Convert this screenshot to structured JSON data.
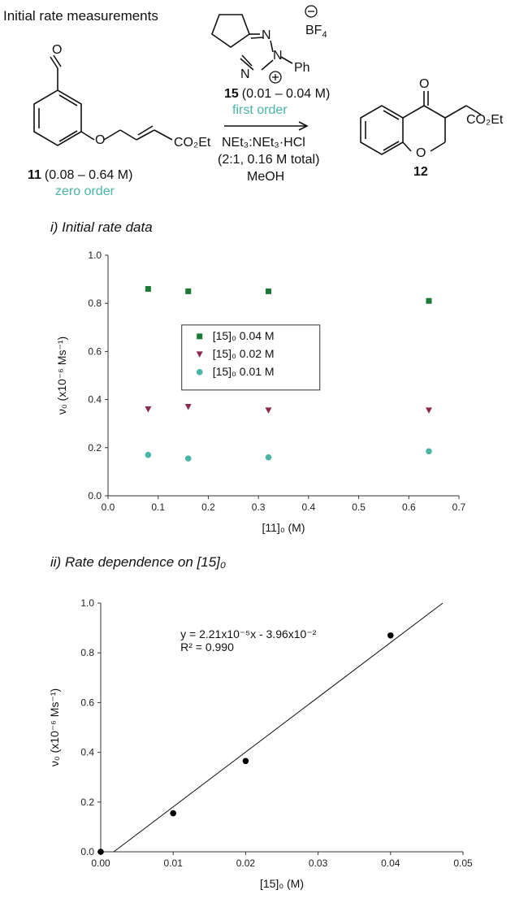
{
  "heading": "Initial rate measurements",
  "scheme": {
    "bf4": "BF",
    "bf4_sub": "4",
    "ph": "Ph",
    "n1": "N",
    "n2": "N",
    "n3": "N",
    "catalyst_label": "15",
    "catalyst_conc": "(0.01 – 0.04 M)",
    "catalyst_order": "first order",
    "conditions_line1": "NEt₃:NEt₃·HCl",
    "conditions_line2": "(2:1, 0.16 M total)",
    "conditions_line3": "MeOH",
    "sm_label": "11",
    "sm_conc": "(0.08 – 0.64 M)",
    "sm_order": "zero order",
    "sm_o": "O",
    "sm_ester": "CO₂Et",
    "sm_ring_o": "O",
    "product_label": "12",
    "product_o_ketone": "O",
    "product_o_ring": "O",
    "product_ester": "CO₂Et",
    "colors": {
      "order_text": "#48b5a6"
    }
  },
  "sections": {
    "one": "i) Initial rate data",
    "two": "ii) Rate dependence on [15]₀"
  },
  "chart_data": [
    {
      "type": "scatter",
      "title": "",
      "xlabel": "[11]₀ (M)",
      "ylabel": "ν₀ (x10⁻⁶ Ms⁻¹)",
      "xlim": [
        0.0,
        0.7
      ],
      "ylim": [
        0.0,
        1.0
      ],
      "xticks": [
        "0.0",
        "0.1",
        "0.2",
        "0.3",
        "0.4",
        "0.5",
        "0.6",
        "0.7"
      ],
      "yticks": [
        "0.0",
        "0.2",
        "0.4",
        "0.6",
        "0.8",
        "1.0"
      ],
      "legend_position": "left",
      "series": [
        {
          "name": "[15]₀ 0.04 M",
          "marker": "square",
          "color": "#1a7a34",
          "x": [
            0.08,
            0.16,
            0.32,
            0.64
          ],
          "y": [
            0.86,
            0.85,
            0.85,
            0.81
          ]
        },
        {
          "name": "[15]₀ 0.02 M",
          "marker": "triangle-down",
          "color": "#8b2b52",
          "x": [
            0.08,
            0.16,
            0.32,
            0.64
          ],
          "y": [
            0.36,
            0.37,
            0.355,
            0.355
          ]
        },
        {
          "name": "[15]₀ 0.01 M",
          "marker": "circle",
          "color": "#48b5a6",
          "x": [
            0.08,
            0.16,
            0.32,
            0.64
          ],
          "y": [
            0.17,
            0.155,
            0.16,
            0.185
          ]
        }
      ]
    },
    {
      "type": "scatter",
      "title": "",
      "xlabel": "[15]₀ (M)",
      "ylabel": "ν₀ (x10⁻⁶ Ms⁻¹)",
      "xlim": [
        0.0,
        0.05
      ],
      "ylim": [
        0.0,
        1.0
      ],
      "xticks": [
        "0.00",
        "0.01",
        "0.02",
        "0.03",
        "0.04",
        "0.05"
      ],
      "yticks": [
        "0.0",
        "0.2",
        "0.4",
        "0.6",
        "0.8",
        "1.0"
      ],
      "series": [
        {
          "marker": "circle",
          "color": "#000000",
          "x": [
            0.0,
            0.01,
            0.02,
            0.04
          ],
          "y": [
            0.0,
            0.155,
            0.365,
            0.87
          ]
        }
      ],
      "fit": {
        "x": [
          0.0018,
          0.0472
        ],
        "y": [
          0.0,
          1.0
        ],
        "equation": "y = 2.21x10⁻⁵x - 3.96x10⁻²",
        "r2": "R² = 0.990"
      }
    }
  ]
}
